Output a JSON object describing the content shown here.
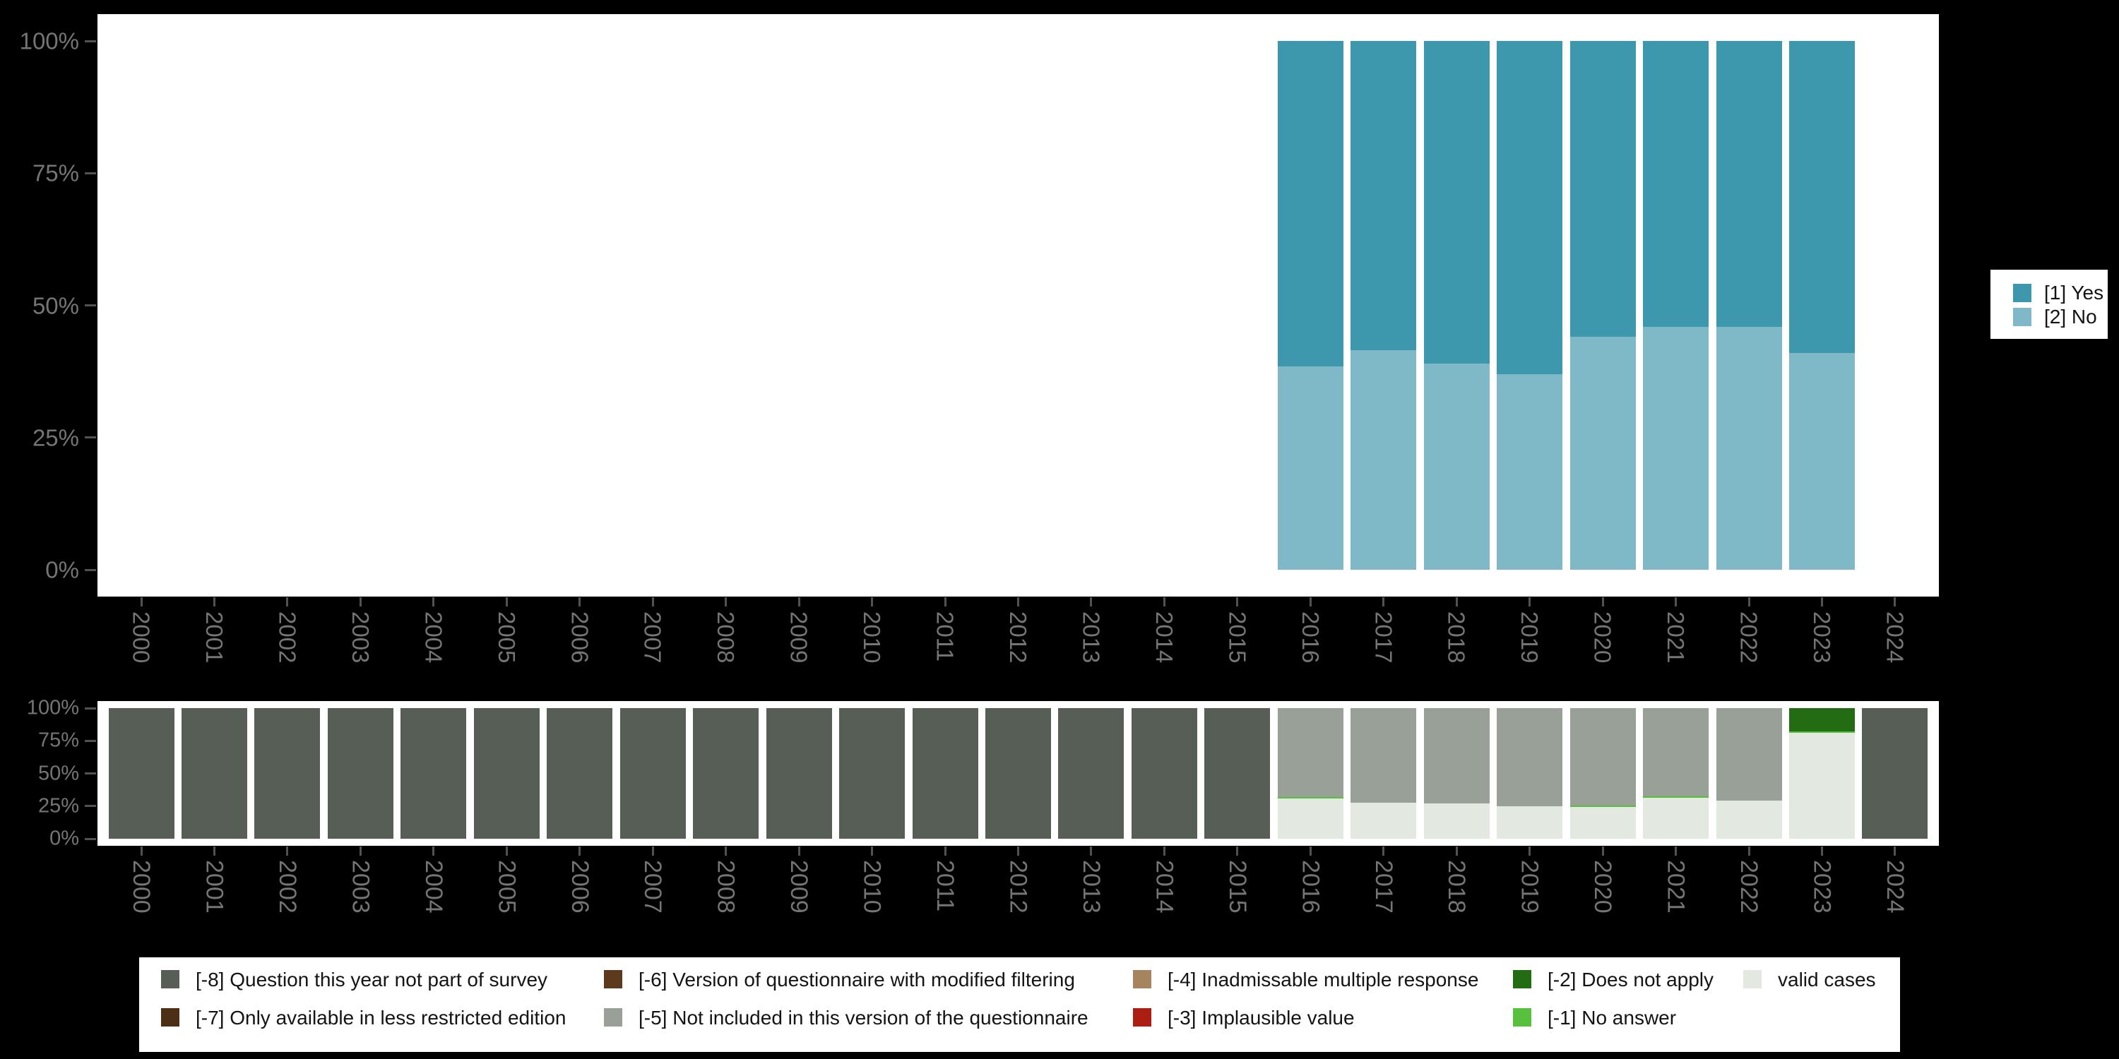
{
  "background_color": "#000000",
  "axis": {
    "label_color": "#757575",
    "tick_color": "#525252",
    "y_tick_labels": [
      "0%",
      "25%",
      "50%",
      "75%",
      "100%"
    ]
  },
  "years": [
    "2000",
    "2001",
    "2002",
    "2003",
    "2004",
    "2005",
    "2006",
    "2007",
    "2008",
    "2009",
    "2010",
    "2011",
    "2012",
    "2013",
    "2014",
    "2015",
    "2016",
    "2017",
    "2018",
    "2019",
    "2020",
    "2021",
    "2022",
    "2023",
    "2024"
  ],
  "colors": {
    "yes": "#3e98ad",
    "no": "#7fb8c7",
    "m8": "#565e56",
    "m7": "#4c3015",
    "m6": "#5d3a1b",
    "m5": "#99a098",
    "m4": "#a6845e",
    "m3": "#ac1e12",
    "m2": "#236c14",
    "m1": "#57c13e",
    "valid": "#e3e8e1"
  },
  "top_legend": {
    "items": [
      {
        "key": "yes",
        "label": "[1] Yes"
      },
      {
        "key": "no",
        "label": "[2] No"
      }
    ]
  },
  "bottom_legend": {
    "items": [
      {
        "key": "m8",
        "label": "[-8] Question this year not part of survey",
        "col": 0,
        "row": 0
      },
      {
        "key": "m7",
        "label": "[-7] Only available in less restricted edition",
        "col": 0,
        "row": 1
      },
      {
        "key": "m6",
        "label": "[-6] Version of questionnaire with modified filtering",
        "col": 1,
        "row": 0
      },
      {
        "key": "m5",
        "label": "[-5] Not included in this version of the questionnaire",
        "col": 1,
        "row": 1
      },
      {
        "key": "m4",
        "label": "[-4] Inadmissable multiple response",
        "col": 2,
        "row": 0
      },
      {
        "key": "m3",
        "label": "[-3] Implausible value",
        "col": 2,
        "row": 1
      },
      {
        "key": "m2",
        "label": "[-2] Does not apply",
        "col": 3,
        "row": 0
      },
      {
        "key": "m1",
        "label": "[-1] No answer",
        "col": 3,
        "row": 1
      },
      {
        "key": "valid",
        "label": "valid cases",
        "col": 4,
        "row": 0
      }
    ]
  },
  "chart_data": [
    {
      "type": "bar",
      "stacked": true,
      "title": "",
      "xlabel": "",
      "ylabel": "",
      "ylim": [
        0,
        100
      ],
      "grid": false,
      "legend_position": "right",
      "y_tick_labels": [
        "0%",
        "25%",
        "50%",
        "75%",
        "100%"
      ],
      "categories": [
        "2000",
        "2001",
        "2002",
        "2003",
        "2004",
        "2005",
        "2006",
        "2007",
        "2008",
        "2009",
        "2010",
        "2011",
        "2012",
        "2013",
        "2014",
        "2015",
        "2016",
        "2017",
        "2018",
        "2019",
        "2020",
        "2021",
        "2022",
        "2023",
        "2024"
      ],
      "series": [
        {
          "name": "[1] Yes",
          "key": "yes",
          "values": [
            0,
            0,
            0,
            0,
            0,
            0,
            0,
            0,
            0,
            0,
            0,
            0,
            0,
            0,
            0,
            0,
            61.5,
            58.5,
            61,
            63,
            56,
            54,
            54,
            59,
            0
          ]
        },
        {
          "name": "[2] No",
          "key": "no",
          "values": [
            0,
            0,
            0,
            0,
            0,
            0,
            0,
            0,
            0,
            0,
            0,
            0,
            0,
            0,
            0,
            0,
            38.5,
            41.5,
            39,
            37,
            44,
            46,
            46,
            41,
            0
          ]
        }
      ]
    },
    {
      "type": "bar",
      "stacked": true,
      "title": "",
      "xlabel": "",
      "ylabel": "",
      "ylim": [
        0,
        100
      ],
      "grid": false,
      "legend_position": "bottom",
      "y_tick_labels": [
        "0%",
        "25%",
        "50%",
        "75%",
        "100%"
      ],
      "categories": [
        "2000",
        "2001",
        "2002",
        "2003",
        "2004",
        "2005",
        "2006",
        "2007",
        "2008",
        "2009",
        "2010",
        "2011",
        "2012",
        "2013",
        "2014",
        "2015",
        "2016",
        "2017",
        "2018",
        "2019",
        "2020",
        "2021",
        "2022",
        "2023",
        "2024"
      ],
      "series": [
        {
          "name": "[-8] Question this year not part of survey",
          "key": "m8",
          "values": [
            100,
            100,
            100,
            100,
            100,
            100,
            100,
            100,
            100,
            100,
            100,
            100,
            100,
            100,
            100,
            100,
            0,
            0,
            0,
            0,
            0,
            0,
            0,
            0,
            100
          ]
        },
        {
          "name": "[-5] Not included in this version of the questionnaire",
          "key": "m5",
          "values": [
            0,
            0,
            0,
            0,
            0,
            0,
            0,
            0,
            0,
            0,
            0,
            0,
            0,
            0,
            0,
            0,
            68,
            72.5,
            73,
            75,
            74.5,
            67.5,
            71,
            0,
            0
          ]
        },
        {
          "name": "[-2] Does not apply",
          "key": "m2",
          "values": [
            0,
            0,
            0,
            0,
            0,
            0,
            0,
            0,
            0,
            0,
            0,
            0,
            0,
            0,
            0,
            0,
            0,
            0,
            0,
            0,
            0,
            0,
            0,
            18,
            0
          ]
        },
        {
          "name": "[-1] No answer",
          "key": "m1",
          "values": [
            0,
            0,
            0,
            0,
            0,
            0,
            0,
            0,
            0,
            0,
            0,
            0,
            0,
            0,
            0,
            0,
            1,
            0,
            0,
            0,
            1,
            1,
            0,
            1,
            0
          ]
        },
        {
          "name": "valid cases",
          "key": "valid",
          "values": [
            0,
            0,
            0,
            0,
            0,
            0,
            0,
            0,
            0,
            0,
            0,
            0,
            0,
            0,
            0,
            0,
            31,
            27.5,
            27,
            25,
            24.5,
            31.5,
            29,
            81,
            0
          ]
        }
      ]
    }
  ]
}
